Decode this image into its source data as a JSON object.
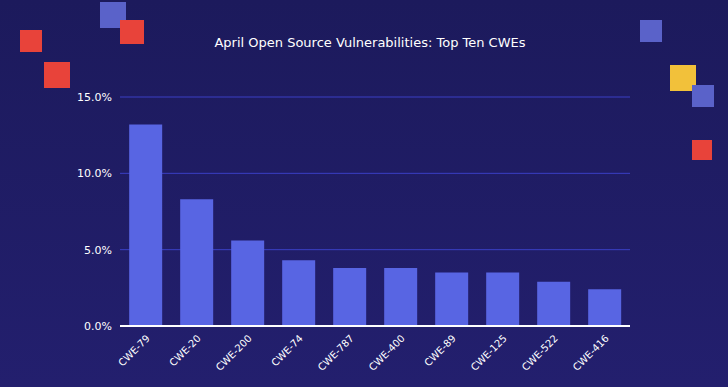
{
  "chart_data": {
    "type": "bar",
    "title": "April Open Source Vulnerabilities: Top Ten CWEs",
    "categories": [
      "CWE-79",
      "CWE-20",
      "CWE-200",
      "CWE-74",
      "CWE-787",
      "CWE-400",
      "CWE-89",
      "CWE-125",
      "CWE-522",
      "CWE-416"
    ],
    "values": [
      13.2,
      8.3,
      5.6,
      4.3,
      3.8,
      3.8,
      3.5,
      3.5,
      2.9,
      2.4
    ],
    "color": "#5865e3",
    "ylim": [
      0,
      15
    ],
    "yticks": [
      {
        "value": 0,
        "label": "0.0%"
      },
      {
        "value": 5,
        "label": "5.0%"
      },
      {
        "value": 10,
        "label": "10.0%"
      },
      {
        "value": 15,
        "label": "15.0%"
      }
    ],
    "grid": true
  }
}
